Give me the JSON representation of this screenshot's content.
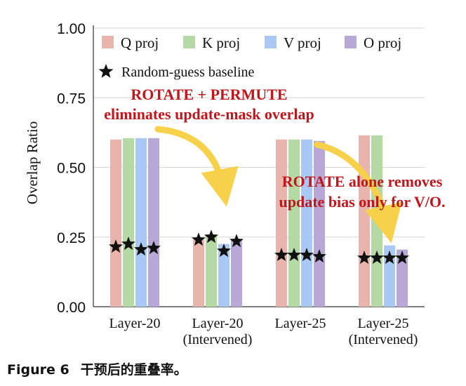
{
  "chart_data": {
    "type": "bar",
    "ylabel": "Overlap Ratio",
    "ylim": [
      0,
      1
    ],
    "yticks": [
      "0.00",
      "0.25",
      "0.50",
      "0.75",
      "1.00"
    ],
    "grid": true,
    "legend_position": "top",
    "categories": [
      [
        "Layer-20"
      ],
      [
        "Layer-20",
        "(Intervened)"
      ],
      [
        "Layer-25"
      ],
      [
        "Layer-25",
        "(Intervened)"
      ]
    ],
    "series": [
      {
        "name": "Q proj",
        "color": "#e8b4ab",
        "values": [
          0.6,
          0.24,
          0.6,
          0.615
        ],
        "baseline": [
          0.215,
          0.24,
          0.185,
          0.175
        ]
      },
      {
        "name": "K proj",
        "color": "#b5d9a5",
        "values": [
          0.605,
          0.26,
          0.6,
          0.615
        ],
        "baseline": [
          0.225,
          0.25,
          0.185,
          0.175
        ]
      },
      {
        "name": "V proj",
        "color": "#a9c8f4",
        "values": [
          0.605,
          0.225,
          0.6,
          0.22
        ],
        "baseline": [
          0.205,
          0.2,
          0.185,
          0.175
        ]
      },
      {
        "name": "O proj",
        "color": "#b7a8d8",
        "values": [
          0.605,
          0.24,
          0.595,
          0.205
        ],
        "baseline": [
          0.21,
          0.235,
          0.18,
          0.175
        ]
      }
    ],
    "baseline_legend": "Random-guess baseline",
    "annotations": [
      {
        "lines": [
          "ROTATE + PERMUTE",
          "eliminates update-mask overlap"
        ],
        "color": "#c0161c"
      },
      {
        "lines": [
          "ROTATE alone removes",
          "update bias only for V/O."
        ],
        "color": "#c0161c"
      }
    ],
    "arrow_color": "#f7d14a"
  },
  "caption": {
    "figure_label": "Figure 6",
    "text": "干预后的重叠率。"
  }
}
